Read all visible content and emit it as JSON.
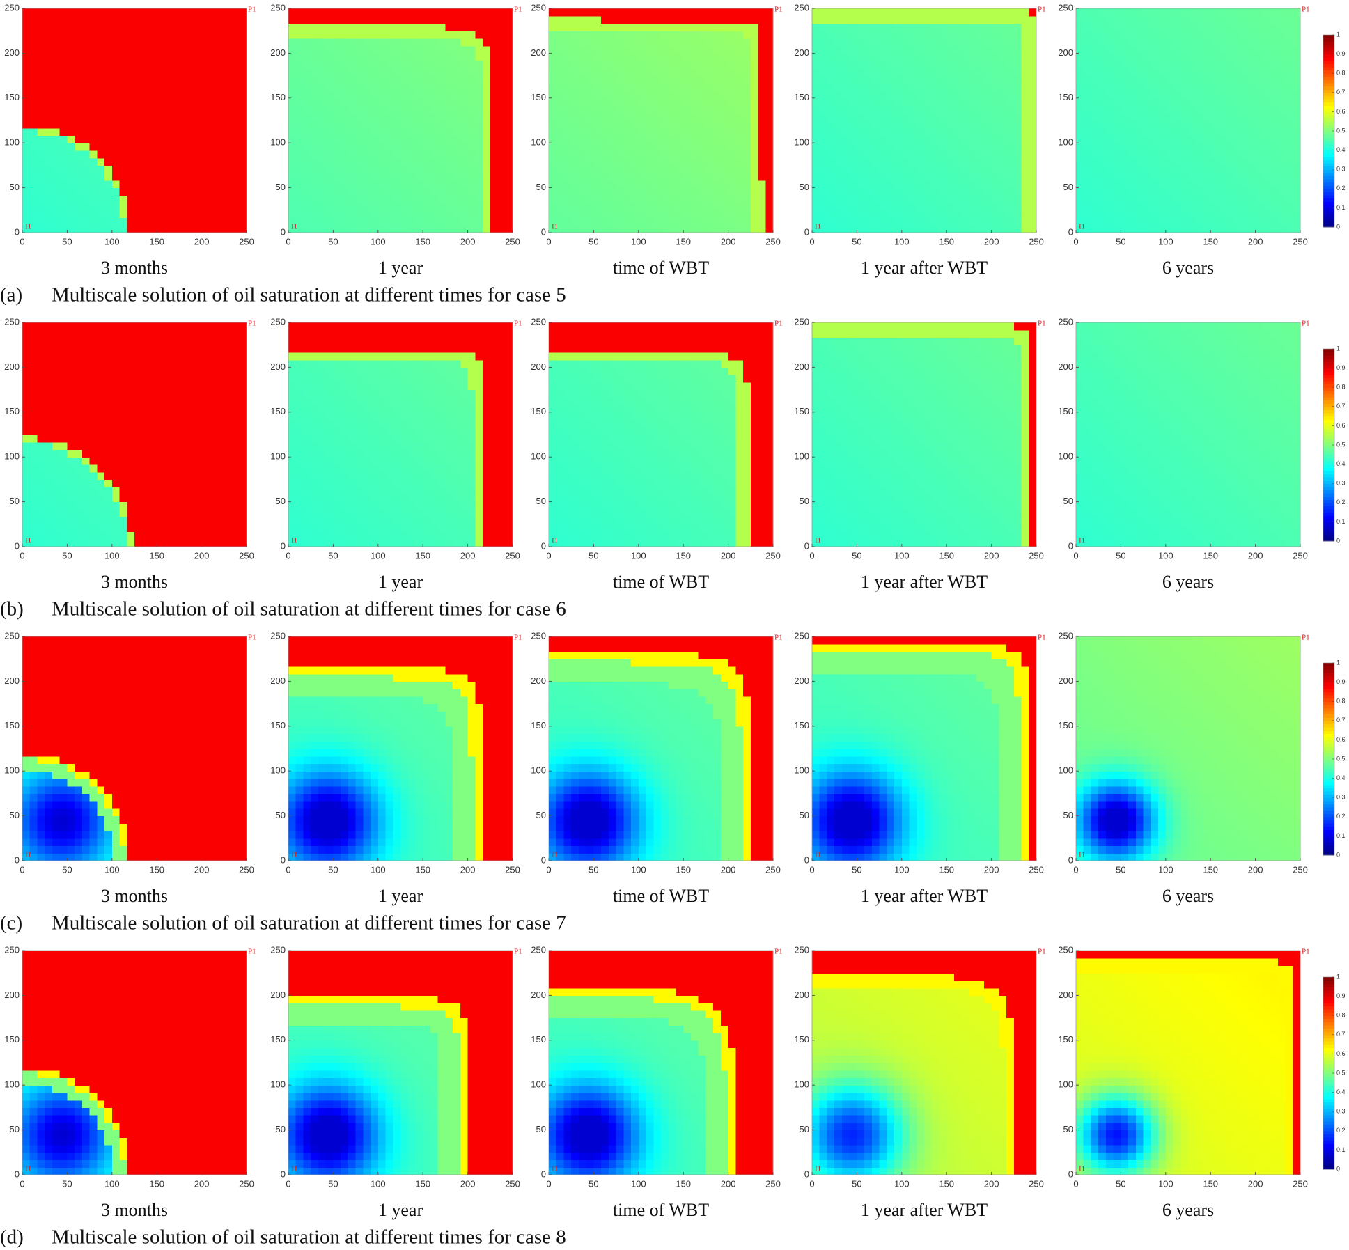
{
  "chart_data": [
    {
      "type": "heatmap",
      "title": "3 months",
      "xlim": [
        0,
        250
      ],
      "ylim": [
        0,
        250
      ],
      "xticks": [
        0,
        50,
        100,
        150,
        200,
        250
      ],
      "yticks": [
        0,
        50,
        100,
        150,
        200,
        250
      ],
      "wells": [
        "P1",
        "I1"
      ]
    },
    {
      "type": "heatmap",
      "title": "1 year",
      "xlim": [
        0,
        250
      ],
      "ylim": [
        0,
        250
      ],
      "xticks": [
        0,
        50,
        100,
        150,
        200,
        250
      ],
      "yticks": [
        0,
        50,
        100,
        150,
        200,
        250
      ],
      "wells": [
        "P1",
        "I1"
      ]
    },
    {
      "type": "heatmap",
      "title": "time of WBT",
      "xlim": [
        0,
        250
      ],
      "ylim": [
        0,
        250
      ],
      "xticks": [
        0,
        50,
        100,
        150,
        200,
        250
      ],
      "yticks": [
        0,
        50,
        100,
        150,
        200,
        250
      ],
      "wells": [
        "P1",
        "I1"
      ]
    },
    {
      "type": "heatmap",
      "title": "1 year after WBT",
      "xlim": [
        0,
        250
      ],
      "ylim": [
        0,
        250
      ],
      "xticks": [
        0,
        50,
        100,
        150,
        200,
        250
      ],
      "yticks": [
        0,
        50,
        100,
        150,
        200,
        250
      ],
      "wells": [
        "P1",
        "I1"
      ]
    },
    {
      "type": "heatmap",
      "title": "6 years",
      "xlim": [
        0,
        250
      ],
      "ylim": [
        0,
        250
      ],
      "xticks": [
        0,
        50,
        100,
        150,
        200,
        250
      ],
      "yticks": [
        0,
        50,
        100,
        150,
        200,
        250
      ],
      "wells": [
        "P1",
        "I1"
      ]
    },
    {
      "type": "heatmap",
      "title": "3 months",
      "xlim": [
        0,
        250
      ],
      "ylim": [
        0,
        250
      ],
      "xticks": [
        0,
        50,
        100,
        150,
        200,
        250
      ],
      "yticks": [
        0,
        50,
        100,
        150,
        200,
        250
      ],
      "wells": [
        "P1",
        "I1"
      ]
    },
    {
      "type": "heatmap",
      "title": "1 year",
      "xlim": [
        0,
        250
      ],
      "ylim": [
        0,
        250
      ],
      "xticks": [
        0,
        50,
        100,
        150,
        200,
        250
      ],
      "yticks": [
        0,
        50,
        100,
        150,
        200,
        250
      ],
      "wells": [
        "P1",
        "I1"
      ]
    },
    {
      "type": "heatmap",
      "title": "time of WBT",
      "xlim": [
        0,
        250
      ],
      "ylim": [
        0,
        250
      ],
      "xticks": [
        0,
        50,
        100,
        150,
        200,
        250
      ],
      "yticks": [
        0,
        50,
        100,
        150,
        200,
        250
      ],
      "wells": [
        "P1",
        "I1"
      ]
    },
    {
      "type": "heatmap",
      "title": "1 year after WBT",
      "xlim": [
        0,
        250
      ],
      "ylim": [
        0,
        250
      ],
      "xticks": [
        0,
        50,
        100,
        150,
        200,
        250
      ],
      "yticks": [
        0,
        50,
        100,
        150,
        200,
        250
      ],
      "wells": [
        "P1",
        "I1"
      ]
    },
    {
      "type": "heatmap",
      "title": "6 years",
      "xlim": [
        0,
        250
      ],
      "ylim": [
        0,
        250
      ],
      "xticks": [
        0,
        50,
        100,
        150,
        200,
        250
      ],
      "yticks": [
        0,
        50,
        100,
        150,
        200,
        250
      ],
      "wells": [
        "P1",
        "I1"
      ]
    },
    {
      "type": "heatmap",
      "title": "3 months",
      "xlim": [
        0,
        250
      ],
      "ylim": [
        0,
        250
      ],
      "xticks": [
        0,
        50,
        100,
        150,
        200,
        250
      ],
      "yticks": [
        0,
        50,
        100,
        150,
        200,
        250
      ],
      "wells": [
        "P1",
        "I1"
      ]
    },
    {
      "type": "heatmap",
      "title": "1 year",
      "xlim": [
        0,
        250
      ],
      "ylim": [
        0,
        250
      ],
      "xticks": [
        0,
        50,
        100,
        150,
        200,
        250
      ],
      "yticks": [
        0,
        50,
        100,
        150,
        200,
        250
      ],
      "wells": [
        "P1",
        "I1"
      ]
    },
    {
      "type": "heatmap",
      "title": "time of WBT",
      "xlim": [
        0,
        250
      ],
      "ylim": [
        0,
        250
      ],
      "xticks": [
        0,
        50,
        100,
        150,
        200,
        250
      ],
      "yticks": [
        0,
        50,
        100,
        150,
        200,
        250
      ],
      "wells": [
        "P1",
        "I1"
      ]
    },
    {
      "type": "heatmap",
      "title": "1 year after WBT",
      "xlim": [
        0,
        250
      ],
      "ylim": [
        0,
        250
      ],
      "xticks": [
        0,
        50,
        100,
        150,
        200,
        250
      ],
      "yticks": [
        0,
        50,
        100,
        150,
        200,
        250
      ],
      "wells": [
        "P1",
        "I1"
      ]
    },
    {
      "type": "heatmap",
      "title": "6 years",
      "xlim": [
        0,
        250
      ],
      "ylim": [
        0,
        250
      ],
      "xticks": [
        0,
        50,
        100,
        150,
        200,
        250
      ],
      "yticks": [
        0,
        50,
        100,
        150,
        200,
        250
      ],
      "wells": [
        "P1",
        "I1"
      ]
    },
    {
      "type": "heatmap",
      "title": "3 months",
      "xlim": [
        0,
        250
      ],
      "ylim": [
        0,
        250
      ],
      "xticks": [
        0,
        50,
        100,
        150,
        200,
        250
      ],
      "yticks": [
        0,
        50,
        100,
        150,
        200,
        250
      ],
      "wells": [
        "P1",
        "I1"
      ]
    },
    {
      "type": "heatmap",
      "title": "1 year",
      "xlim": [
        0,
        250
      ],
      "ylim": [
        0,
        250
      ],
      "xticks": [
        0,
        50,
        100,
        150,
        200,
        250
      ],
      "yticks": [
        0,
        50,
        100,
        150,
        200,
        250
      ],
      "wells": [
        "P1",
        "I1"
      ]
    },
    {
      "type": "heatmap",
      "title": "time of WBT",
      "xlim": [
        0,
        250
      ],
      "ylim": [
        0,
        250
      ],
      "xticks": [
        0,
        50,
        100,
        150,
        200,
        250
      ],
      "yticks": [
        0,
        50,
        100,
        150,
        200,
        250
      ],
      "wells": [
        "P1",
        "I1"
      ]
    },
    {
      "type": "heatmap",
      "title": "1 year after WBT",
      "xlim": [
        0,
        250
      ],
      "ylim": [
        0,
        250
      ],
      "xticks": [
        0,
        50,
        100,
        150,
        200,
        250
      ],
      "yticks": [
        0,
        50,
        100,
        150,
        200,
        250
      ],
      "wells": [
        "P1",
        "I1"
      ]
    },
    {
      "type": "heatmap",
      "title": "6 years",
      "xlim": [
        0,
        250
      ],
      "ylim": [
        0,
        250
      ],
      "xticks": [
        0,
        50,
        100,
        150,
        200,
        250
      ],
      "yticks": [
        0,
        50,
        100,
        150,
        200,
        250
      ],
      "wells": [
        "P1",
        "I1"
      ]
    }
  ],
  "colorbars": [
    {
      "lim": [
        0,
        1
      ],
      "ticks": [
        0,
        0.1,
        0.2,
        0.3,
        0.4,
        0.5,
        0.6,
        0.7,
        0.8,
        0.9,
        1
      ]
    },
    {
      "lim": [
        0,
        1
      ],
      "ticks": [
        0,
        0.1,
        0.2,
        0.3,
        0.4,
        0.5,
        0.6,
        0.7,
        0.8,
        0.9,
        1
      ]
    },
    {
      "lim": [
        0,
        1
      ],
      "ticks": [
        0,
        0.1,
        0.2,
        0.3,
        0.4,
        0.5,
        0.6,
        0.7,
        0.8,
        0.9,
        1
      ]
    },
    {
      "lim": [
        0,
        1
      ],
      "ticks": [
        0,
        0.1,
        0.2,
        0.3,
        0.4,
        0.5,
        0.6,
        0.7,
        0.8,
        0.9,
        1
      ]
    }
  ],
  "captions": [
    {
      "label": "(a)",
      "text": "Multiscale solution of oil saturation at different times for case 5"
    },
    {
      "label": "(b)",
      "text": "Multiscale solution of oil saturation at different times for case 6"
    },
    {
      "label": "(c)",
      "text": "Multiscale solution of oil saturation at different times for case 7"
    },
    {
      "label": "(d)",
      "text": "Multiscale solution of oil saturation at different times for case 8"
    }
  ]
}
